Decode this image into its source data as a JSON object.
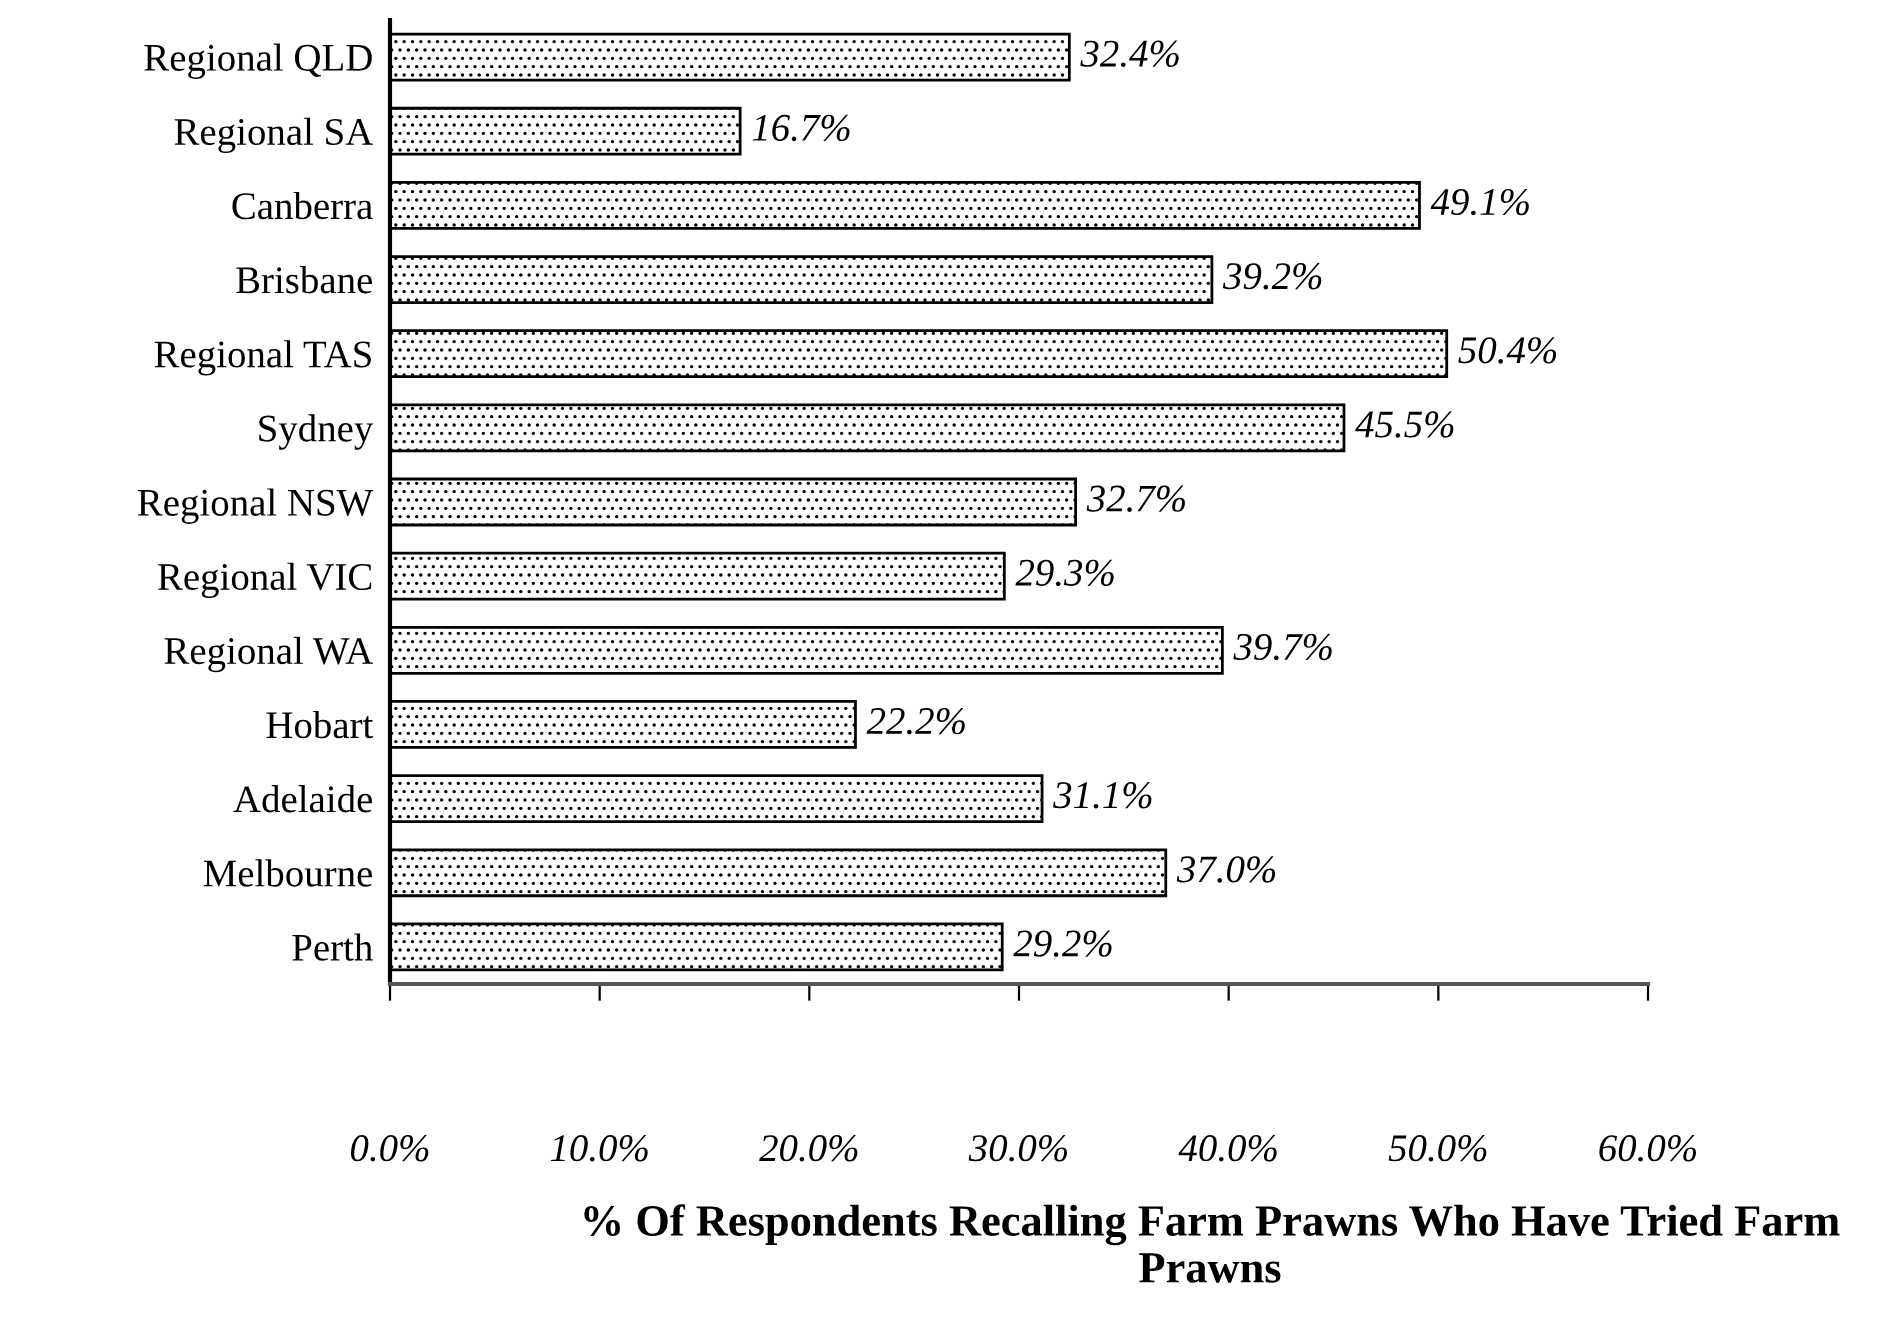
{
  "chart_data": {
    "type": "bar",
    "orientation": "horizontal",
    "xlabel": "% Of Respondents Recalling Farm Prawns Who Have Tried Farm Prawns",
    "categories": [
      "Regional QLD",
      "Regional SA",
      "Canberra",
      "Brisbane",
      "Regional TAS",
      "Sydney",
      "Regional NSW",
      "Regional VIC",
      "Regional WA",
      "Hobart",
      "Adelaide",
      "Melbourne",
      "Perth"
    ],
    "values": [
      32.4,
      16.7,
      49.1,
      39.2,
      50.4,
      45.5,
      32.7,
      29.3,
      39.7,
      22.2,
      31.1,
      37.0,
      29.2
    ],
    "value_labels": [
      "32.4%",
      "16.7%",
      "49.1%",
      "39.2%",
      "50.4%",
      "45.5%",
      "32.7%",
      "29.3%",
      "39.7%",
      "22.2%",
      "31.1%",
      "37.0%",
      "29.2%"
    ],
    "color": "#000000",
    "xlim": [
      0,
      60
    ],
    "xticks": [
      {
        "value": 0,
        "label": "0.0%"
      },
      {
        "value": 10,
        "label": "10.0%"
      },
      {
        "value": 20,
        "label": "20.0%"
      },
      {
        "value": 30,
        "label": "30.0%"
      },
      {
        "value": 40,
        "label": "40.0%"
      },
      {
        "value": 50,
        "label": "50.0%"
      },
      {
        "value": 60,
        "label": "60.0%"
      }
    ],
    "grid": false,
    "legend": false
  }
}
